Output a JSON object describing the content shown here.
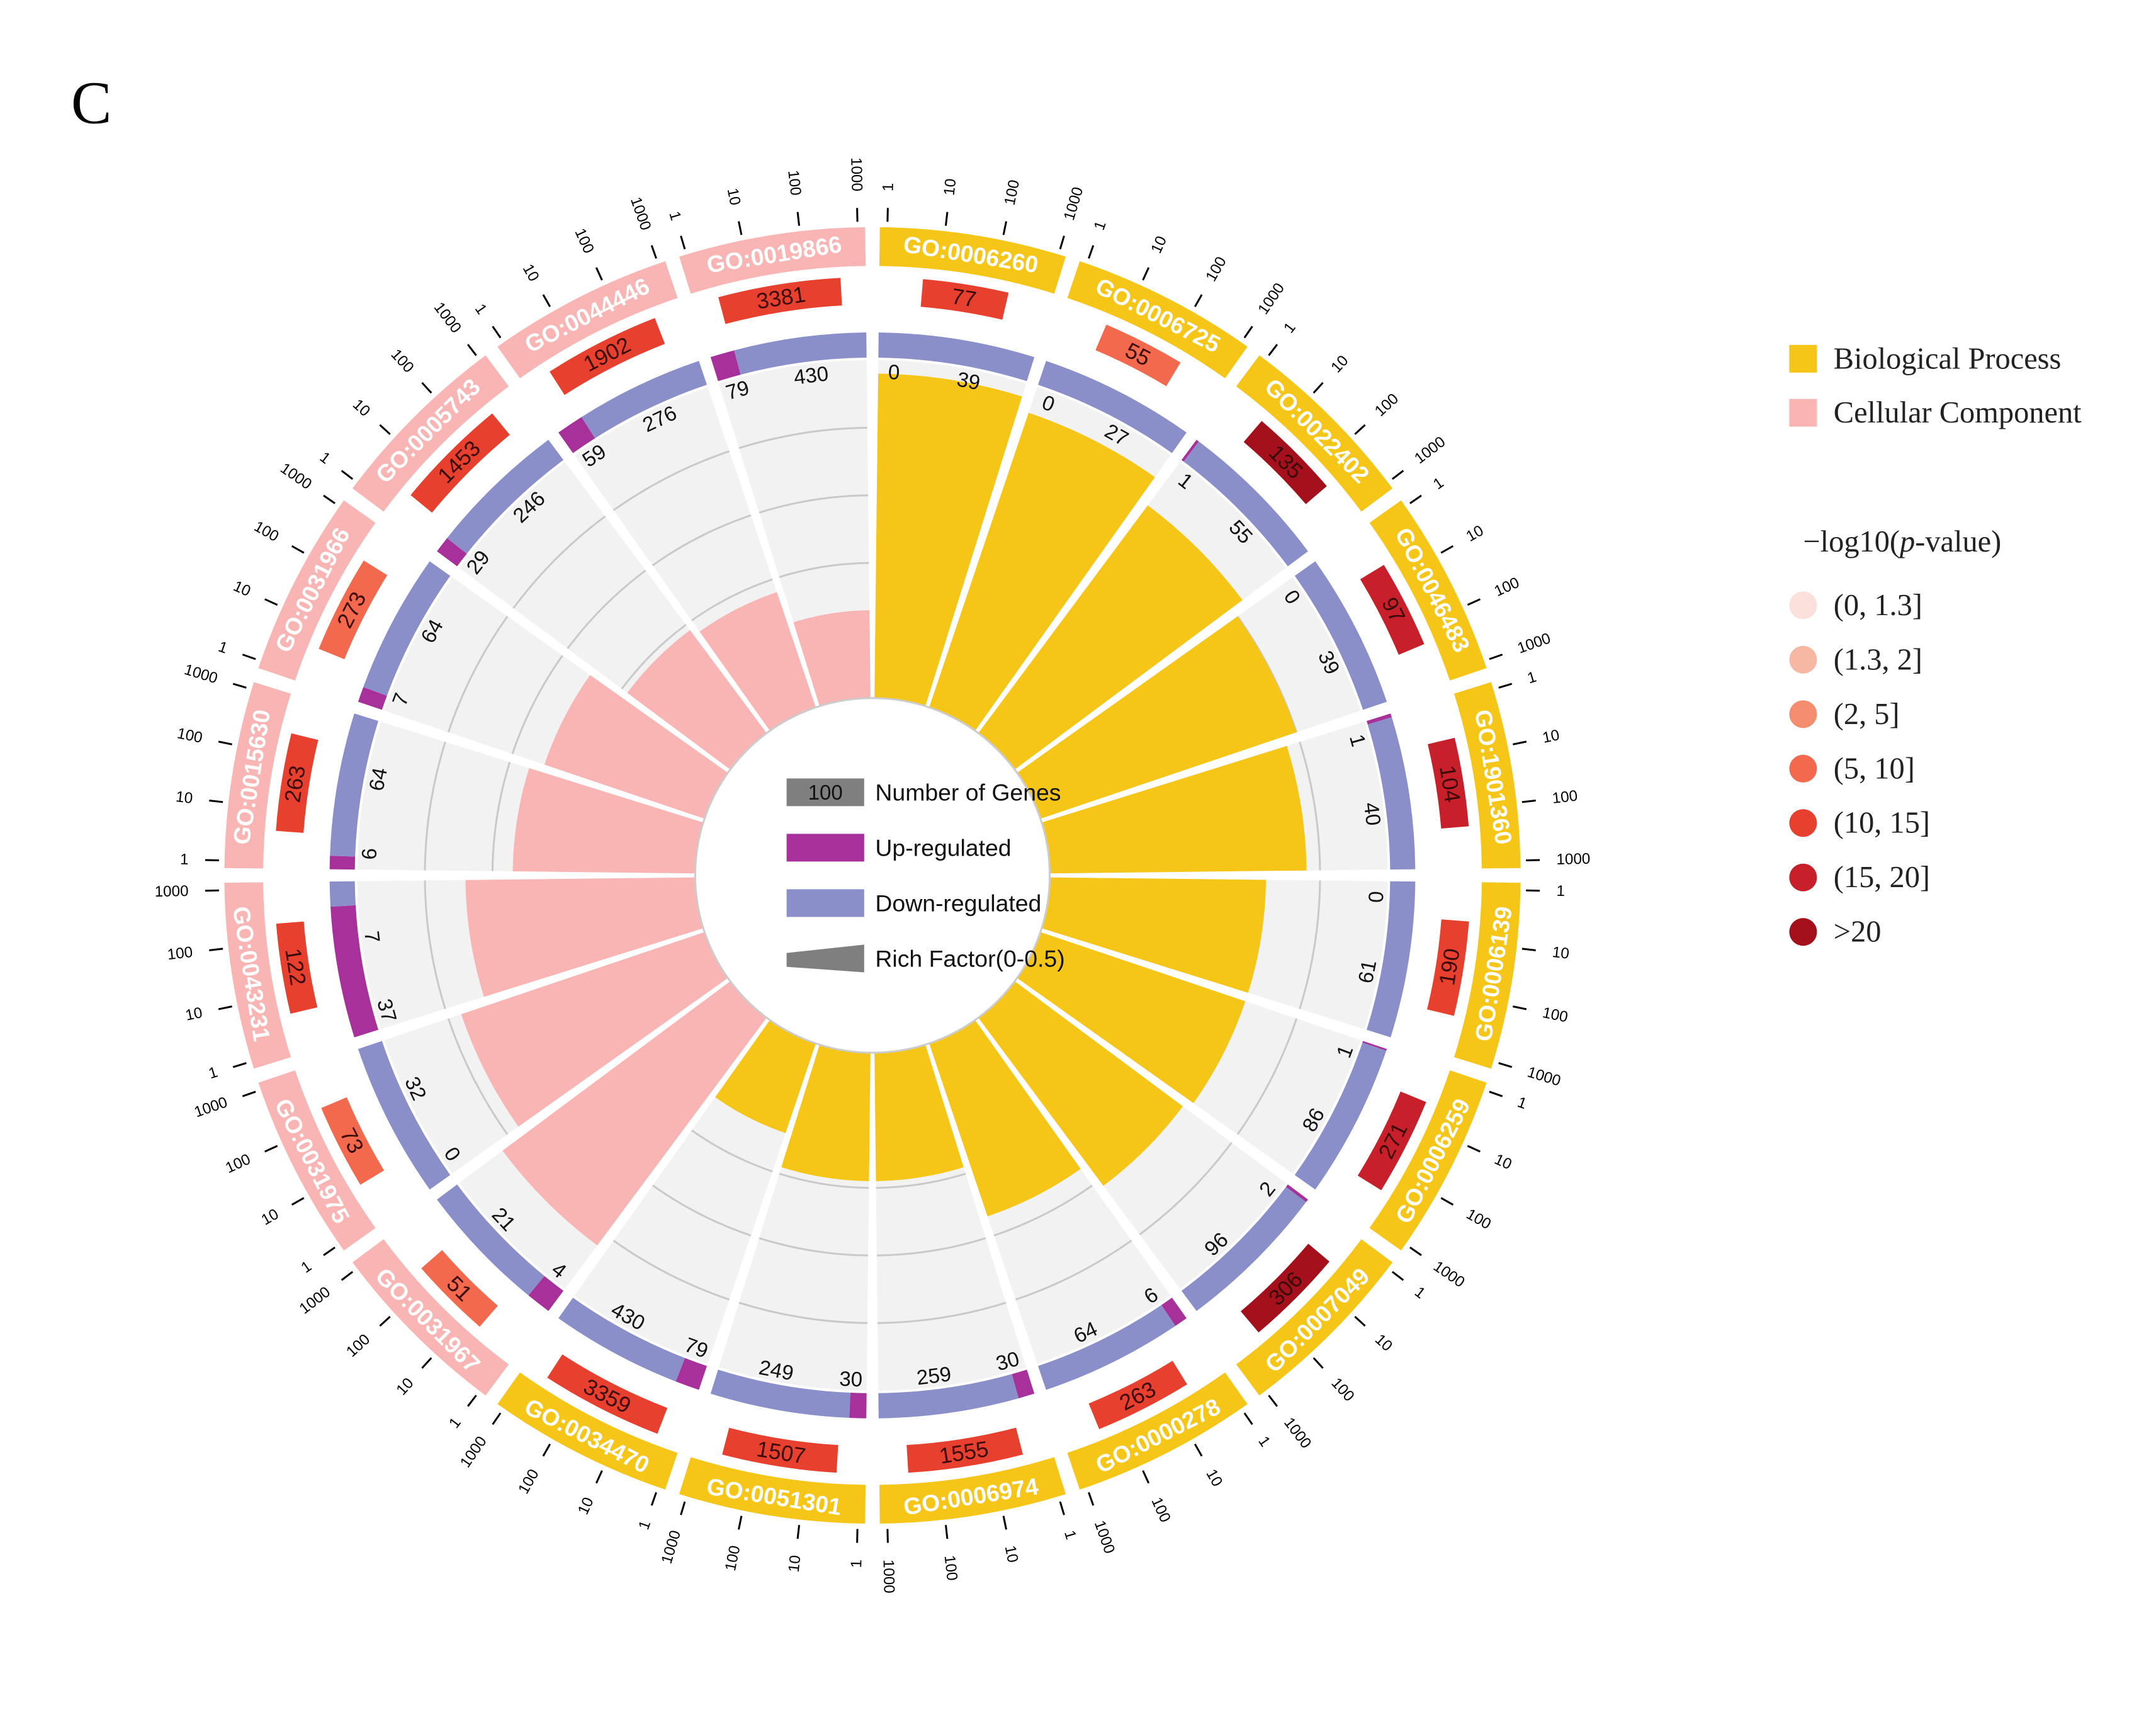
{
  "panel_label": "C",
  "colors": {
    "Biological Process": "#F5C518",
    "Cellular Component": "#F9B4B4",
    "up": "#A8309A",
    "down": "#8A8FCA",
    "track_bg": "#F2F2F2",
    "track_line": "#C9C9C9"
  },
  "center_legend": [
    {
      "key": "genes",
      "badge": "100",
      "label": "Number of Genes",
      "color": "#7F7F7F",
      "shape": "box"
    },
    {
      "key": "up",
      "badge": "",
      "label": "Up-regulated",
      "color": "#A8309A",
      "shape": "box"
    },
    {
      "key": "down",
      "badge": "",
      "label": "Down-regulated",
      "color": "#8A8FCA",
      "shape": "box"
    },
    {
      "key": "rich",
      "badge": "",
      "label": "Rich Factor(0-0.5)",
      "color": "#7F7F7F",
      "shape": "wedge"
    }
  ],
  "side_legend": {
    "categories": [
      {
        "label": "Biological Process",
        "color": "#F5C518"
      },
      {
        "label": "Cellular Component",
        "color": "#F9B4B4"
      }
    ],
    "pvalue_title_prefix": "−log10(",
    "pvalue_title_italic": "p",
    "pvalue_title_suffix": "-value)",
    "pvalue_bins": [
      {
        "label": "(0, 1.3]",
        "color": "#FBE0DC"
      },
      {
        "label": "(1.3, 2]",
        "color": "#F6B7A3"
      },
      {
        "label": "(2, 5]",
        "color": "#F48C6E"
      },
      {
        "label": "(5, 10]",
        "color": "#F2694D"
      },
      {
        "label": "(10, 15]",
        "color": "#E8402E"
      },
      {
        "label": "(15, 20]",
        "color": "#C8202A"
      },
      {
        "label": ">20",
        "color": "#A4101C"
      }
    ]
  },
  "chart_data": {
    "type": "circular_bar",
    "scale_ticks": [
      "1",
      "10",
      "100",
      "1000"
    ],
    "sectors": [
      {
        "id": "GO:0006260",
        "category": "Biological Process",
        "total": 77,
        "total_color": "#E8402E",
        "up": 0,
        "down": 39,
        "rich": 0.48
      },
      {
        "id": "GO:0006725",
        "category": "Biological Process",
        "total": 55,
        "total_color": "#F2694D",
        "up": 0,
        "down": 27,
        "rich": 0.46
      },
      {
        "id": "GO:0022402",
        "category": "Biological Process",
        "total": 135,
        "total_color": "#A4101C",
        "up": 1,
        "down": 55,
        "rich": 0.42
      },
      {
        "id": "GO:0046483",
        "category": "Biological Process",
        "total": 97,
        "total_color": "#C8202A",
        "up": 0,
        "down": 39,
        "rich": 0.4
      },
      {
        "id": "GO:1901360",
        "category": "Biological Process",
        "total": 104,
        "total_color": "#C8202A",
        "up": 1,
        "down": 40,
        "rich": 0.38
      },
      {
        "id": "GO:0006139",
        "category": "Biological Process",
        "total": 190,
        "total_color": "#E8402E",
        "up": 0,
        "down": 61,
        "rich": 0.32
      },
      {
        "id": "GO:0006259",
        "category": "Biological Process",
        "total": 271,
        "total_color": "#C8202A",
        "up": 1,
        "down": 86,
        "rich": 0.32
      },
      {
        "id": "GO:0007049",
        "category": "Biological Process",
        "total": 306,
        "total_color": "#A4101C",
        "up": 2,
        "down": 96,
        "rich": 0.31
      },
      {
        "id": "GO:0000278",
        "category": "Biological Process",
        "total": 263,
        "total_color": "#E8402E",
        "up": 6,
        "down": 64,
        "rich": 0.27
      },
      {
        "id": "GO:0006974",
        "category": "Biological Process",
        "total": 1555,
        "total_color": "#E8402E",
        "up": 30,
        "down": 259,
        "rich": 0.19
      },
      {
        "id": "GO:0051301",
        "category": "Biological Process",
        "total": 1507,
        "total_color": "#E8402E",
        "up": 30,
        "down": 249,
        "rich": 0.19
      },
      {
        "id": "GO:0034470",
        "category": "Biological Process",
        "total": 3359,
        "total_color": "#E8402E",
        "up": 79,
        "down": 430,
        "rich": 0.14
      },
      {
        "id": "GO:0031967",
        "category": "Cellular Component",
        "total": 51,
        "total_color": "#F2694D",
        "up": 4,
        "down": 21,
        "rich": 0.42
      },
      {
        "id": "GO:0031975",
        "category": "Cellular Component",
        "total": 73,
        "total_color": "#F2694D",
        "up": 0,
        "down": 32,
        "rich": 0.38
      },
      {
        "id": "GO:0043231",
        "category": "Cellular Component",
        "total": 122,
        "total_color": "#E8402E",
        "up": 37,
        "down": 7,
        "rich": 0.34
      },
      {
        "id": "GO:0015630",
        "category": "Cellular Component",
        "total": 263,
        "total_color": "#E8402E",
        "up": 6,
        "down": 64,
        "rich": 0.27
      },
      {
        "id": "GO:0031966",
        "category": "Cellular Component",
        "total": 273,
        "total_color": "#F2694D",
        "up": 7,
        "down": 64,
        "rich": 0.25
      },
      {
        "id": "GO:0005743",
        "category": "Cellular Component",
        "total": 1453,
        "total_color": "#E8402E",
        "up": 29,
        "down": 246,
        "rich": 0.19
      },
      {
        "id": "GO:0044446",
        "category": "Cellular Component",
        "total": 1902,
        "total_color": "#E8402E",
        "up": 59,
        "down": 276,
        "rich": 0.18
      },
      {
        "id": "GO:0019866",
        "category": "Cellular Component",
        "total": 3381,
        "total_color": "#E8402E",
        "up": 79,
        "down": 430,
        "rich": 0.13
      }
    ]
  }
}
